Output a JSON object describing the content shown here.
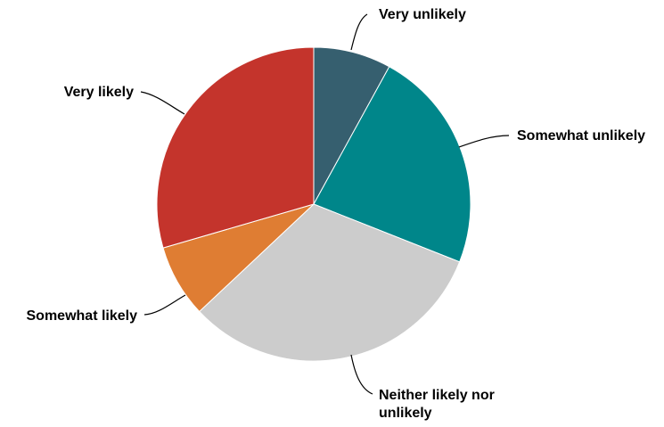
{
  "chart_data": {
    "type": "pie",
    "title": "",
    "legend": "none",
    "start_angle_deg": 0,
    "direction": "clockwise",
    "slices": [
      {
        "label": "Very unlikely",
        "value": 8,
        "color": "#365f6f"
      },
      {
        "label": "Somewhat unlikely",
        "value": 23,
        "color": "#00868a"
      },
      {
        "label": "Neither likely nor unlikely",
        "value": 32,
        "color": "#cccccc"
      },
      {
        "label": "Somewhat likely",
        "value": 7.5,
        "color": "#df7d33"
      },
      {
        "label": "Very likely",
        "value": 29.5,
        "color": "#c4342c"
      }
    ]
  }
}
